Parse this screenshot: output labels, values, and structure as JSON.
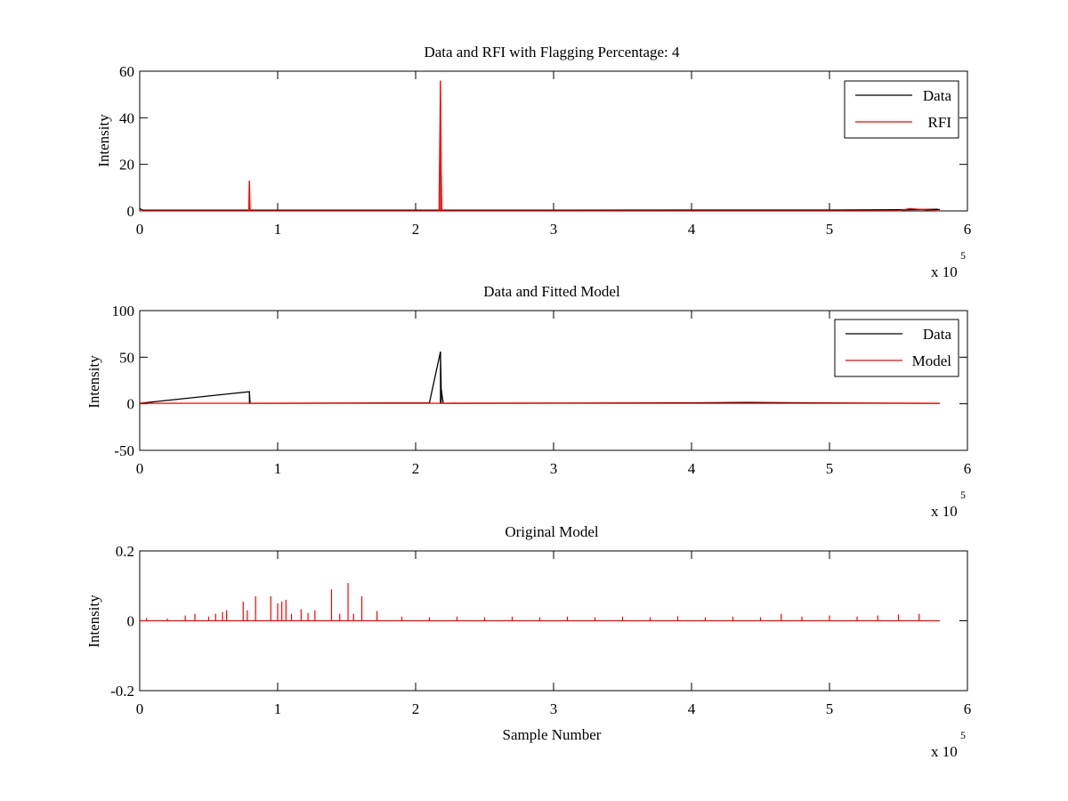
{
  "figure": {
    "background": "#ffffff",
    "axis_color": "#000000"
  },
  "chart_data": [
    {
      "type": "line",
      "title": "Data and RFI with Flagging Percentage: 4",
      "xlabel": "",
      "ylabel": "Intensity",
      "xlim": [
        0,
        6
      ],
      "ylim": [
        0,
        60
      ],
      "x_exponent_label": "x 10",
      "x_exponent_sup": "5",
      "xticks": [
        0,
        1,
        2,
        3,
        4,
        5,
        6
      ],
      "yticks": [
        0,
        20,
        40,
        60
      ],
      "xtick_labels": [
        "0",
        "1",
        "2",
        "3",
        "4",
        "5",
        "6"
      ],
      "ytick_labels": [
        "0",
        "20",
        "40",
        "60"
      ],
      "legend_position": "top-right",
      "series": [
        {
          "name": "Data",
          "color": "#000000",
          "x": [
            0,
            0.02,
            0.05,
            0.8,
            2.18,
            4.0,
            5.0,
            5.5,
            5.78,
            5.8
          ],
          "y": [
            1.0,
            0.4,
            0.3,
            0.3,
            0.3,
            0.4,
            0.4,
            0.5,
            0.7,
            0.5
          ]
        },
        {
          "name": "RFI",
          "color": "#ff0000",
          "x": [
            0,
            0.79,
            0.795,
            0.8,
            2.17,
            2.18,
            2.185,
            2.19,
            5.5,
            5.58,
            5.8
          ],
          "y": [
            0,
            0,
            13,
            0,
            0,
            56,
            15.5,
            0,
            0,
            1.0,
            0
          ],
          "peaks": [
            {
              "x": 0.795,
              "y": 13
            },
            {
              "x": 2.18,
              "y": 56
            },
            {
              "x": 2.185,
              "y": 15.5
            }
          ]
        }
      ]
    },
    {
      "type": "line",
      "title": "Data and Fitted Model",
      "xlabel": "",
      "ylabel": "Intensity",
      "xlim": [
        0,
        6
      ],
      "ylim": [
        -50,
        100
      ],
      "x_exponent_label": "x 10",
      "x_exponent_sup": "5",
      "xticks": [
        0,
        1,
        2,
        3,
        4,
        5,
        6
      ],
      "yticks": [
        -50,
        0,
        50,
        100
      ],
      "xtick_labels": [
        "0",
        "1",
        "2",
        "3",
        "4",
        "5",
        "6"
      ],
      "ytick_labels": [
        "-50",
        "0",
        "50",
        "100"
      ],
      "legend_position": "top-right",
      "series": [
        {
          "name": "Data",
          "color": "#000000",
          "x": [
            0,
            0.795,
            0.8,
            2.1,
            2.18,
            2.185,
            2.2,
            4.0,
            4.4,
            4.8,
            5.8
          ],
          "y": [
            0.5,
            13,
            0.5,
            1.0,
            56,
            16,
            0.5,
            1.0,
            1.5,
            1.0,
            0.5
          ],
          "peaks": [
            {
              "x": 0.795,
              "y": 13
            },
            {
              "x": 2.18,
              "y": 56
            },
            {
              "x": 2.185,
              "y": 16
            }
          ]
        },
        {
          "name": "Model",
          "color": "#ff0000",
          "x": [
            0,
            5.8
          ],
          "y": [
            0.5,
            0.5
          ]
        }
      ]
    },
    {
      "type": "line",
      "title": "Original Model",
      "xlabel": "Sample Number",
      "ylabel": "Intensity",
      "xlim": [
        0,
        6
      ],
      "ylim": [
        -0.2,
        0.2
      ],
      "x_exponent_label": "x 10",
      "x_exponent_sup": "5",
      "xticks": [
        0,
        1,
        2,
        3,
        4,
        5,
        6
      ],
      "yticks": [
        -0.2,
        0,
        0.2
      ],
      "xtick_labels": [
        "0",
        "1",
        "2",
        "3",
        "4",
        "5",
        "6"
      ],
      "ytick_labels": [
        "-0.2",
        "0",
        "0.2"
      ],
      "series": [
        {
          "name": "",
          "color": "#ff0000",
          "x": [
            0,
            5.8
          ],
          "y": [
            0,
            0
          ],
          "peaks": [
            {
              "x": 0.05,
              "y": 0.008
            },
            {
              "x": 0.2,
              "y": 0.006
            },
            {
              "x": 0.33,
              "y": 0.015
            },
            {
              "x": 0.4,
              "y": 0.02
            },
            {
              "x": 0.5,
              "y": 0.012
            },
            {
              "x": 0.55,
              "y": 0.02
            },
            {
              "x": 0.6,
              "y": 0.025
            },
            {
              "x": 0.63,
              "y": 0.03
            },
            {
              "x": 0.75,
              "y": 0.055
            },
            {
              "x": 0.78,
              "y": 0.03
            },
            {
              "x": 0.84,
              "y": 0.07
            },
            {
              "x": 0.95,
              "y": 0.07
            },
            {
              "x": 1.0,
              "y": 0.05
            },
            {
              "x": 1.03,
              "y": 0.055
            },
            {
              "x": 1.06,
              "y": 0.06
            },
            {
              "x": 1.1,
              "y": 0.02
            },
            {
              "x": 1.17,
              "y": 0.033
            },
            {
              "x": 1.22,
              "y": 0.022
            },
            {
              "x": 1.27,
              "y": 0.03
            },
            {
              "x": 1.39,
              "y": 0.09
            },
            {
              "x": 1.45,
              "y": 0.02
            },
            {
              "x": 1.51,
              "y": 0.108
            },
            {
              "x": 1.55,
              "y": 0.02
            },
            {
              "x": 1.61,
              "y": 0.07
            },
            {
              "x": 1.72,
              "y": 0.028
            },
            {
              "x": 1.9,
              "y": 0.012
            },
            {
              "x": 2.1,
              "y": 0.01
            },
            {
              "x": 2.3,
              "y": 0.012
            },
            {
              "x": 2.5,
              "y": 0.01
            },
            {
              "x": 2.7,
              "y": 0.012
            },
            {
              "x": 2.9,
              "y": 0.01
            },
            {
              "x": 3.1,
              "y": 0.012
            },
            {
              "x": 3.3,
              "y": 0.01
            },
            {
              "x": 3.5,
              "y": 0.012
            },
            {
              "x": 3.7,
              "y": 0.01
            },
            {
              "x": 3.9,
              "y": 0.013
            },
            {
              "x": 4.1,
              "y": 0.01
            },
            {
              "x": 4.3,
              "y": 0.012
            },
            {
              "x": 4.5,
              "y": 0.01
            },
            {
              "x": 4.65,
              "y": 0.02
            },
            {
              "x": 4.8,
              "y": 0.012
            },
            {
              "x": 5.0,
              "y": 0.015
            },
            {
              "x": 5.2,
              "y": 0.012
            },
            {
              "x": 5.35,
              "y": 0.015
            },
            {
              "x": 5.5,
              "y": 0.018
            },
            {
              "x": 5.65,
              "y": 0.02
            }
          ]
        }
      ]
    }
  ]
}
